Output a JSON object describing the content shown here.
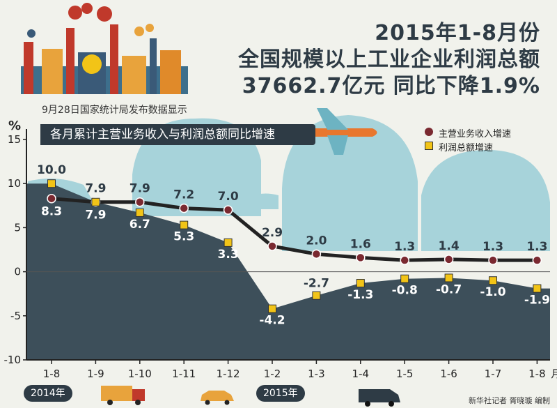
{
  "header": {
    "title_line1": "2015年1-8月份",
    "title_line2": "全国规模以上工业企业利润总额",
    "title_line3": "37662.7亿元 同比下降1.9%",
    "subtitle": "9月28日国家统计局发布数据显示",
    "banner": "各月累计主营业务收入与利润总额同比增速"
  },
  "year_tags": [
    "2014年",
    "2015年"
  ],
  "credit": "新华社记者 胥晓璇 编制",
  "colors": {
    "revenue_marker": "#7a2930",
    "profit_marker": "#f2c417",
    "line": "#222222",
    "area_dark": "#3d4f5a",
    "area_light": "#a7d3da"
  },
  "chart_data": {
    "type": "line",
    "title": "各月累计主营业务收入与利润总额同比增速",
    "ylabel": "%",
    "x_unit": "月",
    "categories": [
      "1-8",
      "1-9",
      "1-10",
      "1-11",
      "1-12",
      "1-2",
      "1-3",
      "1-4",
      "1-5",
      "1-6",
      "1-7",
      "1-8"
    ],
    "yticks": [
      "15",
      "10",
      "5",
      "0",
      "-5",
      "-10"
    ],
    "ylim": [
      -10,
      15
    ],
    "legend_position": "top-right",
    "series": [
      {
        "name": "主营业务收入增速",
        "marker": "circle",
        "values": [
          8.3,
          7.9,
          7.9,
          7.2,
          7.0,
          2.9,
          2.0,
          1.6,
          1.3,
          1.4,
          1.3,
          1.3
        ],
        "labels": [
          "8.3",
          "7.9",
          "7.9",
          "7.2",
          "7.0",
          "2.9",
          "2.0",
          "1.6",
          "1.3",
          "1.4",
          "1.3",
          "1.3"
        ]
      },
      {
        "name": "利润总额增速",
        "marker": "square",
        "values": [
          10.0,
          7.9,
          6.7,
          5.3,
          3.3,
          -4.2,
          -2.7,
          -1.3,
          -0.8,
          -0.7,
          -1.0,
          -1.9
        ],
        "labels": [
          "10.0",
          "7.9",
          "6.7",
          "5.3",
          "3.3",
          "-4.2",
          "-2.7",
          "-1.3",
          "-0.8",
          "-0.7",
          "-1.0",
          "-1.9"
        ]
      }
    ]
  }
}
